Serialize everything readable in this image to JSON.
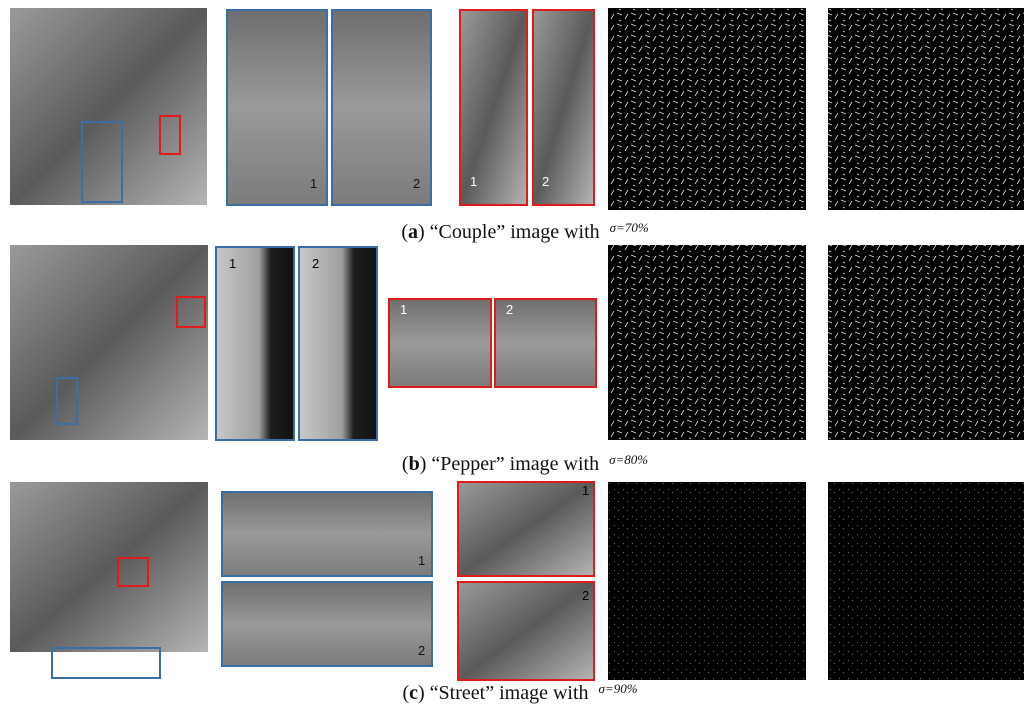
{
  "figure": {
    "rows": [
      {
        "caption": {
          "prefix": "(",
          "label": "a",
          "suffix": ") “Couple” image with",
          "sigma": "σ=70%"
        },
        "blue_labels": [
          "1",
          "2"
        ],
        "red_labels": [
          "1",
          "2"
        ]
      },
      {
        "caption": {
          "prefix": "(",
          "label": "b",
          "suffix": ") “Pepper” image with",
          "sigma": "σ=80%"
        },
        "blue_labels": [
          "1",
          "2"
        ],
        "red_labels": [
          "1",
          "2"
        ]
      },
      {
        "caption": {
          "prefix": "(",
          "label": "c",
          "suffix": ") “Street” image with",
          "sigma": "σ=90%"
        },
        "blue_labels": [
          "1",
          "2"
        ],
        "red_labels": [
          "1",
          "2"
        ]
      }
    ]
  }
}
